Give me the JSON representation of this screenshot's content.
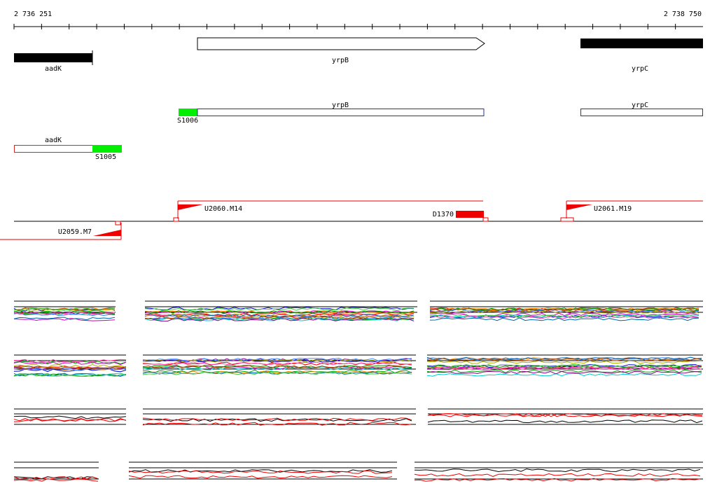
{
  "scale": {
    "start": "2 736 251",
    "end": "2 738 750"
  },
  "genes": [
    {
      "label": "aadK"
    },
    {
      "label": "yrpB"
    },
    {
      "label": "yrpC"
    }
  ],
  "transcripts": [
    {
      "label": "yrpB"
    },
    {
      "label": "yrpC"
    },
    {
      "label": "S1006"
    },
    {
      "label": "aadK"
    },
    {
      "label": "S1005"
    }
  ],
  "features": [
    {
      "label": "U2060.M14"
    },
    {
      "label": "D1370"
    },
    {
      "label": "U2061.M19"
    },
    {
      "label": "U2059.M7"
    }
  ]
}
